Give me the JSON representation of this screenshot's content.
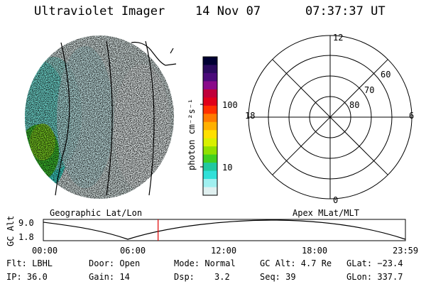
{
  "header": {
    "instrument": "Ultraviolet Imager",
    "date": "14 Nov 07",
    "time": "07:37:37 UT"
  },
  "colorbar": {
    "label": "photon cm⁻²s⁻¹",
    "ticks": [
      "100",
      "10"
    ],
    "colors": [
      "#000033",
      "#2a0a5e",
      "#4a0a7a",
      "#8a0a8a",
      "#c0003a",
      "#e0001a",
      "#ff3000",
      "#ff7a00",
      "#ffb000",
      "#ffe000",
      "#d8f000",
      "#90e000",
      "#40d020",
      "#20c8a0",
      "#30e0d8",
      "#a0f0f0",
      "#e0f0f0"
    ]
  },
  "polar_plot": {
    "mlt_labels": {
      "top": "12",
      "left": "18",
      "right": "6",
      "bottom": "0"
    },
    "lat_labels": [
      "60",
      "70",
      "80"
    ]
  },
  "timeline": {
    "left_title": "Geographic Lat/Lon",
    "right_title": "Apex MLat/MLT",
    "axis_label": "GC Alt",
    "y_ticks": [
      "9.0",
      "1.8"
    ],
    "x_ticks": [
      "00:00",
      "06:00",
      "12:00",
      "18:00",
      "23:59"
    ],
    "current_time_fraction": 0.317,
    "marker_color": "#e00000"
  },
  "info": {
    "filter": "Flt: LBHL",
    "ip": "IP: 36.0",
    "door": "Door: Open",
    "gain": "Gain: 14",
    "mode": "Mode: Normal",
    "dsp_label": "Dsp:",
    "dsp_value": "3.2",
    "gc_alt": "GC Alt: 4.7 Re",
    "seq": "Seq: 39",
    "glat": "GLat: −23.4",
    "glon": "GLon: 337.7"
  }
}
